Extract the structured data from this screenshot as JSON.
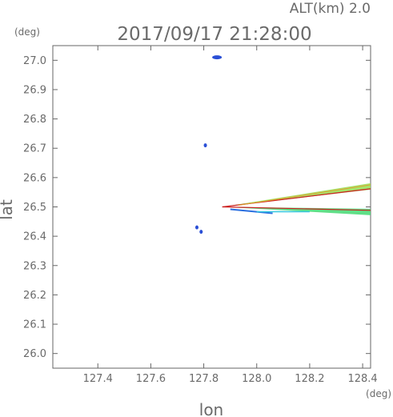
{
  "header": {
    "alt_label": "ALT(km) 2.0",
    "timestamp": "2017/09/17 21:28:00"
  },
  "chart_data": {
    "type": "scatter",
    "title": "2017/09/17 21:28:00",
    "xlabel": "lon",
    "ylabel": "lat",
    "x_unit": "(deg)",
    "y_unit": "(deg)",
    "xlim": [
      127.23,
      128.43
    ],
    "ylim": [
      25.95,
      27.05
    ],
    "xticks": [
      127.4,
      127.6,
      127.8,
      128.0,
      128.2,
      128.4
    ],
    "x_tick_labels": [
      "127.4",
      "127.6",
      "127.8",
      "128.0",
      "128.2",
      "128.4"
    ],
    "yticks": [
      26.0,
      26.1,
      26.2,
      26.3,
      26.4,
      26.5,
      26.6,
      26.7,
      26.8,
      26.9,
      27.0
    ],
    "y_tick_labels": [
      "26.0",
      "26.1",
      "26.2",
      "26.3",
      "26.4",
      "26.5",
      "26.6",
      "26.7",
      "26.8",
      "26.9",
      "27.0"
    ],
    "grid": false,
    "clusters": [
      {
        "lon": 127.85,
        "lat": 27.01,
        "color": "#2a4fd6"
      },
      {
        "lon": 127.806,
        "lat": 26.71,
        "color": "#2a4fd6"
      },
      {
        "lon": 127.774,
        "lat": 26.43,
        "color": "#2a4fd6"
      },
      {
        "lon": 127.79,
        "lat": 26.415,
        "color": "#2a4fd6"
      }
    ],
    "wedge": {
      "apex": {
        "lon": 127.87,
        "lat": 26.5
      },
      "upper_edge": {
        "lon": 128.43,
        "lat": 26.57
      },
      "lower_edge": {
        "lon": 128.43,
        "lat": 26.48
      },
      "colors": [
        "#cc2020",
        "#e0a030",
        "#9be05a",
        "#4fdc7a",
        "#35c8e0",
        "#2a6fe0"
      ]
    }
  }
}
